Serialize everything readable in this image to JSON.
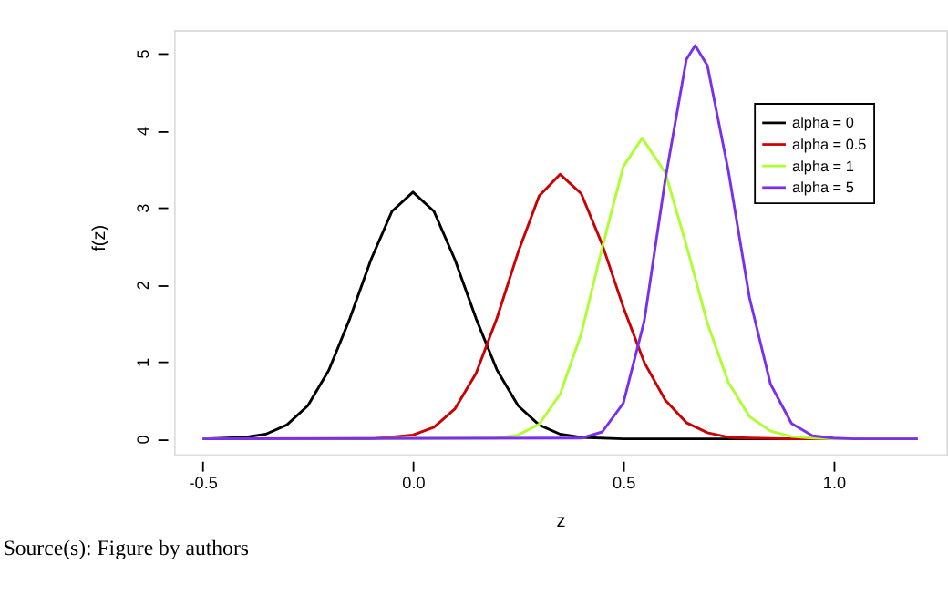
{
  "chart_data": {
    "type": "line",
    "xlabel": "z",
    "ylabel": "f(z)",
    "annotations": [
      "Source(s): Figure by authors"
    ],
    "xlim": [
      -0.568,
      1.268
    ],
    "ylim": [
      -0.2,
      5.3
    ],
    "xticks": [
      {
        "value": -0.5,
        "label": "-0.5"
      },
      {
        "value": 0,
        "label": "0.0"
      },
      {
        "value": 0.5,
        "label": "0.5"
      },
      {
        "value": 1,
        "label": "1.0"
      }
    ],
    "yticks": [
      0,
      1,
      2,
      3,
      4,
      5
    ],
    "grid": false,
    "legend": "top right",
    "marker": "none",
    "line_style": "solid",
    "series": [
      {
        "name": "alpha = 0",
        "color": "#000000",
        "x": [
          -0.5,
          -0.4,
          -0.35,
          -0.3,
          -0.25,
          -0.2,
          -0.15,
          -0.1,
          -0.05,
          0,
          0.05,
          0.1,
          0.15,
          0.2,
          0.25,
          0.3,
          0.35,
          0.4,
          0.5,
          1.2
        ],
        "values": [
          0,
          0.02,
          0.06,
          0.18,
          0.43,
          0.89,
          1.56,
          2.32,
          2.95,
          3.2,
          2.95,
          2.32,
          1.56,
          0.89,
          0.43,
          0.18,
          0.06,
          0.02,
          0,
          0
        ]
      },
      {
        "name": "alpha = 0.5",
        "color": "#cc0000",
        "x": [
          -0.5,
          -0.1,
          0,
          0.05,
          0.1,
          0.15,
          0.2,
          0.25,
          0.3,
          0.35,
          0.4,
          0.45,
          0.5,
          0.55,
          0.6,
          0.65,
          0.7,
          0.75,
          0.8,
          0.9,
          1.2
        ],
        "values": [
          0,
          0,
          0.05,
          0.15,
          0.39,
          0.85,
          1.57,
          2.42,
          3.15,
          3.43,
          3.18,
          2.52,
          1.71,
          0.99,
          0.5,
          0.21,
          0.08,
          0.02,
          0.01,
          0,
          0
        ]
      },
      {
        "name": "alpha = 1",
        "color": "#adff2f",
        "x": [
          -0.5,
          0.2,
          0.25,
          0.3,
          0.35,
          0.4,
          0.45,
          0.5,
          0.545,
          0.6,
          0.65,
          0.7,
          0.75,
          0.8,
          0.85,
          0.9,
          0.95,
          1.0,
          1.2
        ],
        "values": [
          0,
          0.01,
          0.05,
          0.19,
          0.58,
          1.36,
          2.48,
          3.53,
          3.9,
          3.45,
          2.51,
          1.5,
          0.73,
          0.29,
          0.1,
          0.03,
          0.01,
          0,
          0
        ]
      },
      {
        "name": "alpha = 5",
        "color": "#7a2ff0",
        "x": [
          -0.5,
          0.4,
          0.45,
          0.5,
          0.55,
          0.6,
          0.65,
          0.671,
          0.7,
          0.75,
          0.8,
          0.85,
          0.9,
          0.95,
          1.0,
          1.05,
          1.2
        ],
        "values": [
          0,
          0.01,
          0.09,
          0.46,
          1.53,
          3.37,
          4.92,
          5.1,
          4.84,
          3.47,
          1.83,
          0.71,
          0.2,
          0.04,
          0.01,
          0,
          0
        ]
      }
    ]
  }
}
